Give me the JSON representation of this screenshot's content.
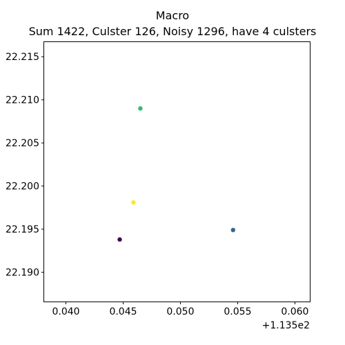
{
  "chart_data": {
    "type": "scatter",
    "title": "Macro",
    "subtitle": "Sum 1422, Culster 126, Noisy 1296, have 4 culsters",
    "xlabel": "",
    "ylabel": "",
    "x_offset_label": "+1.135e2",
    "xlim": [
      113.5381,
      113.5613
    ],
    "ylim": [
      22.1866,
      22.2167
    ],
    "x_ticks": [
      113.54,
      113.545,
      113.55,
      113.555,
      113.56
    ],
    "x_tick_labels": [
      "0.040",
      "0.045",
      "0.050",
      "0.055",
      "0.060"
    ],
    "y_ticks": [
      22.19,
      22.195,
      22.2,
      22.205,
      22.21,
      22.215
    ],
    "y_tick_labels": [
      "22.190",
      "22.195",
      "22.200",
      "22.205",
      "22.210",
      "22.215"
    ],
    "grid": false,
    "legend": "none",
    "series": [
      {
        "color": "#440154",
        "points": [
          [
            113.5447,
            22.1938
          ]
        ]
      },
      {
        "color": "#31688e",
        "points": [
          [
            113.5546,
            22.1949
          ]
        ]
      },
      {
        "color": "#35b779",
        "points": [
          [
            113.5465,
            22.209
          ]
        ]
      },
      {
        "color": "#fde725",
        "points": [
          [
            113.5459,
            22.1981
          ]
        ]
      }
    ]
  }
}
